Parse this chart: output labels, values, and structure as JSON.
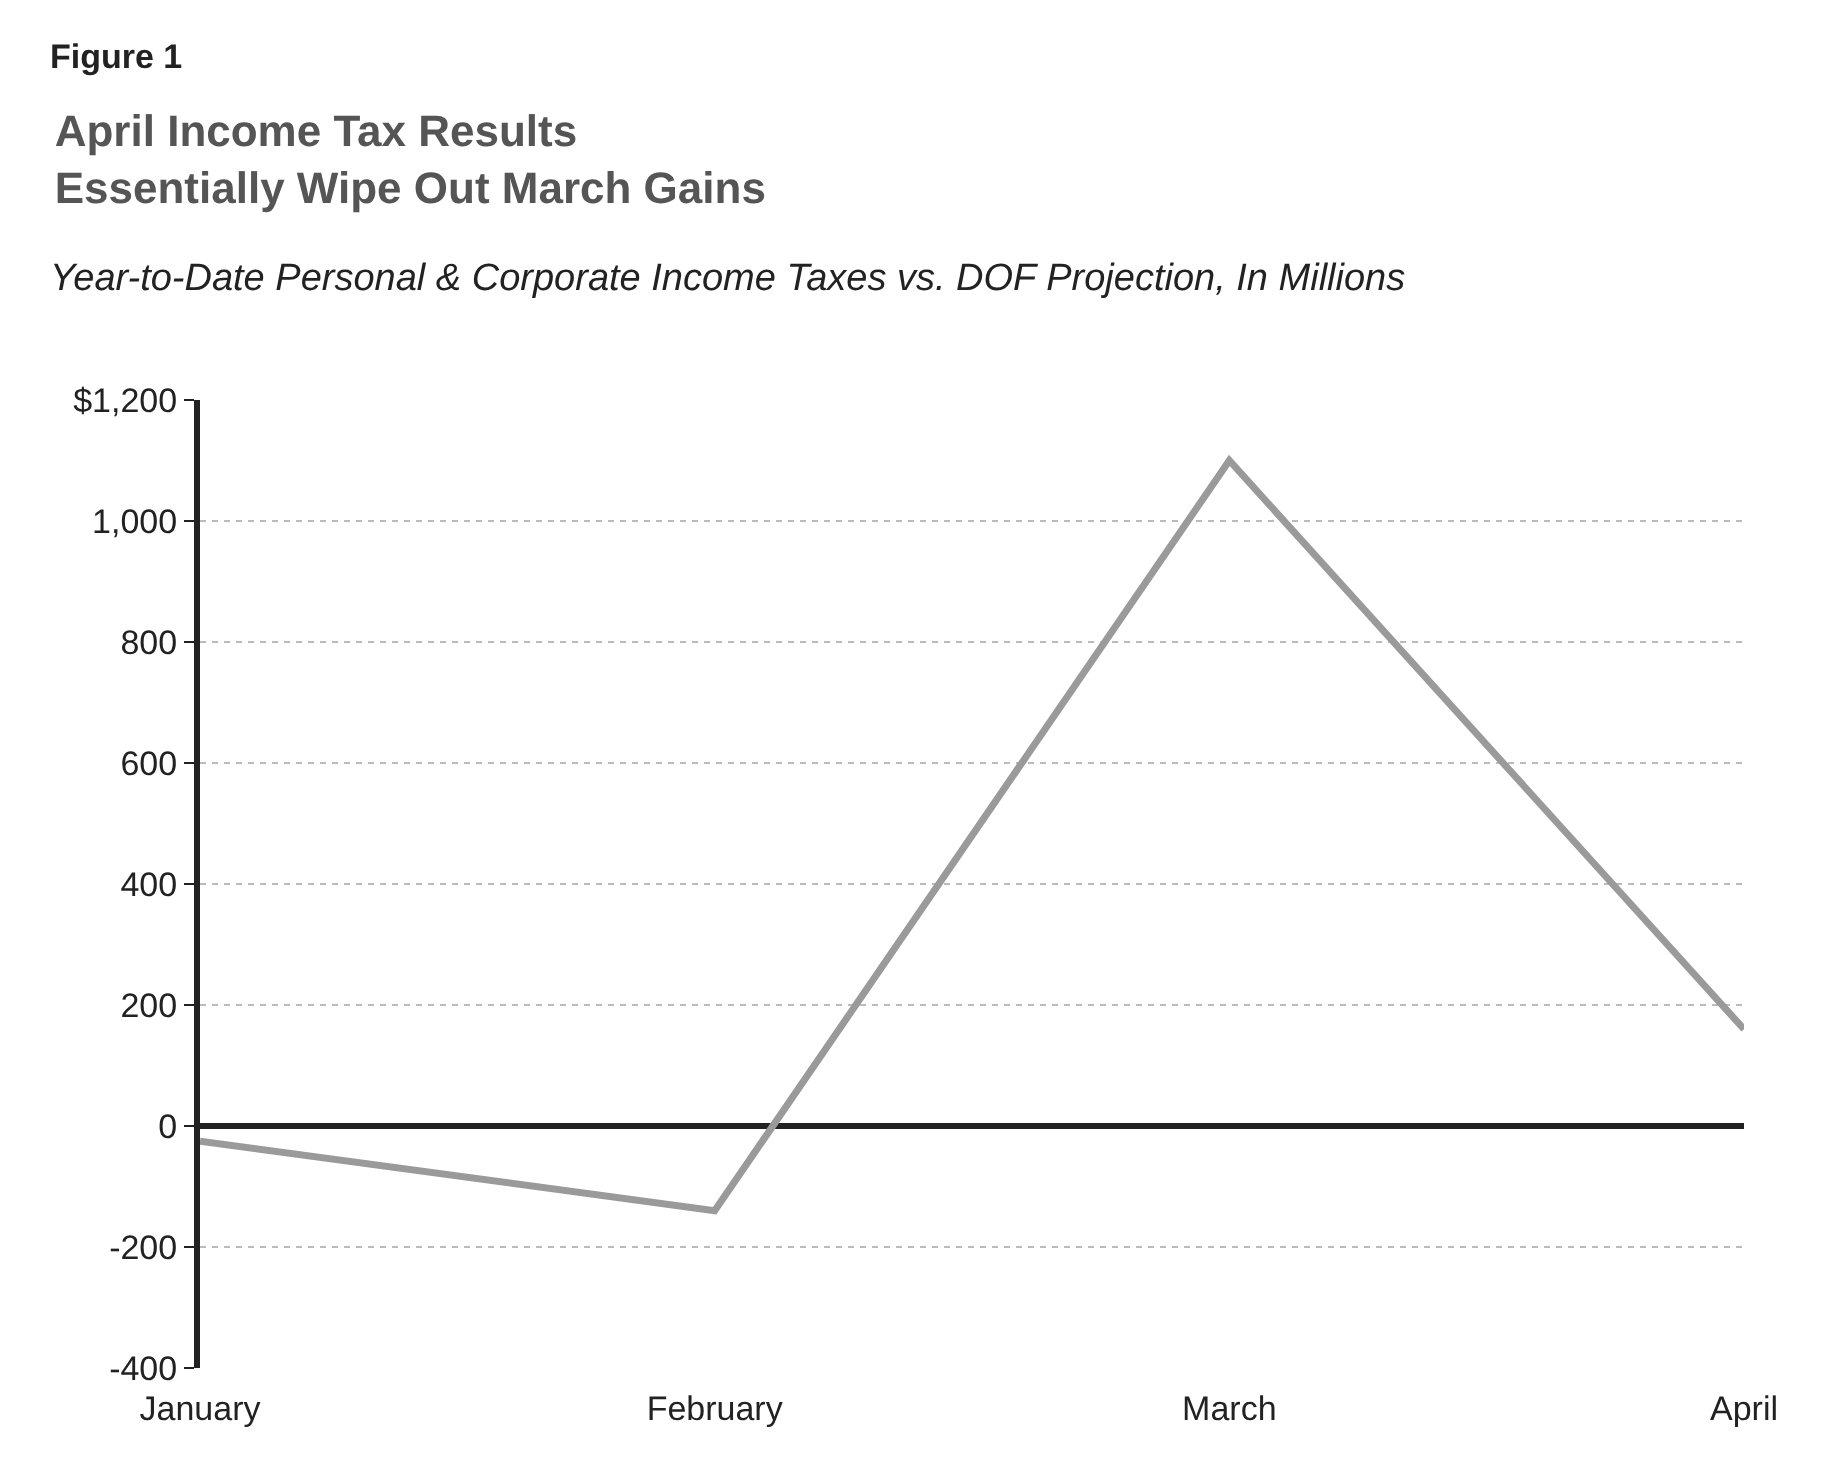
{
  "chart_data": {
    "type": "line",
    "title": "April Income Tax Results\nEssentially Wipe Out March Gains",
    "subtitle": "Year-to-Date Personal & Corporate Income Taxes vs. DOF Projection, In Millions",
    "annotations": [
      "Figure 1"
    ],
    "categories": [
      "January",
      "February",
      "March",
      "April"
    ],
    "series": [
      {
        "color": "#9a9a9a",
        "values": [
          -25,
          -140,
          1100,
          160
        ]
      }
    ],
    "ylim": [
      -400,
      1200
    ],
    "yticks": [
      {
        "value": -400,
        "label": "-400"
      },
      {
        "value": -200,
        "label": "-200"
      },
      0,
      200,
      400,
      600,
      800,
      {
        "value": 1000,
        "label": "1,000"
      },
      {
        "value": 1200,
        "label": "$1,200"
      }
    ],
    "grid": "y",
    "marker": "none",
    "line_style": "solid"
  }
}
